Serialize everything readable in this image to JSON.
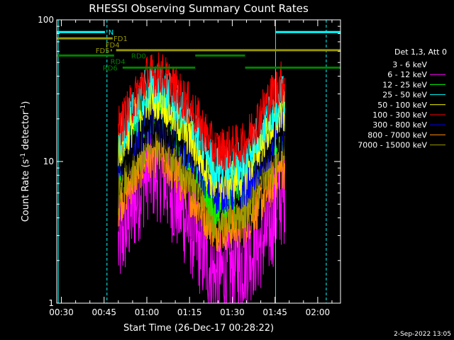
{
  "chart_data": {
    "type": "line",
    "title": "RHESSI Observing Summary Count Rates",
    "xlabel": "Start Time (26-Dec-17 00:28:22)",
    "ylabel_main": "Count Rate (s",
    "ylabel_sup": "-1",
    "ylabel_tail": " detector",
    "ylabel_end": ")",
    "y_scale": "log",
    "xlim": [
      28.37,
      128.0
    ],
    "ylim": [
      1,
      100
    ],
    "grid": false,
    "legend_position": "right",
    "x_ticks": [
      {
        "value": 30,
        "label": "00:30"
      },
      {
        "value": 45,
        "label": "00:45"
      },
      {
        "value": 60,
        "label": "01:00"
      },
      {
        "value": 75,
        "label": "01:15"
      },
      {
        "value": 90,
        "label": "01:30"
      },
      {
        "value": 105,
        "label": "01:45"
      },
      {
        "value": 120,
        "label": "02:00"
      }
    ],
    "y_ticks": [
      {
        "value": 1,
        "label": "1"
      },
      {
        "value": 10,
        "label": "10"
      },
      {
        "value": 100,
        "label": "100"
      }
    ],
    "legend_title": "Det 1,3, Att 0",
    "data_start": 50.0,
    "data_end": 108.5,
    "series": [
      {
        "name": "3 - 6 keV",
        "color": "#000000",
        "values": [
          {
            "x": 50,
            "y": 8
          },
          {
            "x": 60,
            "y": 18
          },
          {
            "x": 65,
            "y": 16
          },
          {
            "x": 75,
            "y": 13
          },
          {
            "x": 84,
            "y": 10.5
          },
          {
            "x": 94,
            "y": 11
          },
          {
            "x": 102,
            "y": 13
          },
          {
            "x": 107,
            "y": 15
          }
        ]
      },
      {
        "name": "6 - 12 keV",
        "color": "#ff00ff",
        "values": [
          {
            "x": 50,
            "y": 2.5
          },
          {
            "x": 60,
            "y": 8.5
          },
          {
            "x": 65,
            "y": 8.2
          },
          {
            "x": 75,
            "y": 3.5
          },
          {
            "x": 84,
            "y": 1.5
          },
          {
            "x": 94,
            "y": 2
          },
          {
            "x": 102,
            "y": 3
          },
          {
            "x": 107,
            "y": 5.5
          }
        ]
      },
      {
        "name": "12 - 25 keV",
        "color": "#00ff00",
        "values": [
          {
            "x": 50,
            "y": 10
          },
          {
            "x": 60,
            "y": 22
          },
          {
            "x": 65,
            "y": 23
          },
          {
            "x": 75,
            "y": 12
          },
          {
            "x": 84,
            "y": 5
          },
          {
            "x": 94,
            "y": 7
          },
          {
            "x": 102,
            "y": 14
          },
          {
            "x": 107,
            "y": 17
          }
        ]
      },
      {
        "name": "25 - 50 keV",
        "color": "#00ffff",
        "values": [
          {
            "x": 50,
            "y": 14
          },
          {
            "x": 60,
            "y": 33
          },
          {
            "x": 65,
            "y": 35
          },
          {
            "x": 75,
            "y": 20
          },
          {
            "x": 84,
            "y": 9
          },
          {
            "x": 94,
            "y": 10
          },
          {
            "x": 102,
            "y": 20
          },
          {
            "x": 107,
            "y": 28
          }
        ]
      },
      {
        "name": "50 - 100 keV",
        "color": "#ffff00",
        "values": [
          {
            "x": 50,
            "y": 12
          },
          {
            "x": 60,
            "y": 28
          },
          {
            "x": 65,
            "y": 28
          },
          {
            "x": 75,
            "y": 15
          },
          {
            "x": 84,
            "y": 7
          },
          {
            "x": 94,
            "y": 8
          },
          {
            "x": 102,
            "y": 16
          },
          {
            "x": 107,
            "y": 22
          }
        ]
      },
      {
        "name": "100 - 300 keV",
        "color": "#ff0000",
        "values": [
          {
            "x": 50,
            "y": 17
          },
          {
            "x": 60,
            "y": 40
          },
          {
            "x": 65,
            "y": 42
          },
          {
            "x": 75,
            "y": 25
          },
          {
            "x": 84,
            "y": 12
          },
          {
            "x": 94,
            "y": 13
          },
          {
            "x": 102,
            "y": 26
          },
          {
            "x": 107,
            "y": 36
          }
        ]
      },
      {
        "name": "300 - 800 keV",
        "color": "#0000ff",
        "values": [
          {
            "x": 50,
            "y": 10
          },
          {
            "x": 60,
            "y": 18
          },
          {
            "x": 65,
            "y": 19
          },
          {
            "x": 75,
            "y": 12
          },
          {
            "x": 84,
            "y": 6
          },
          {
            "x": 94,
            "y": 6.5
          },
          {
            "x": 102,
            "y": 11
          },
          {
            "x": 107,
            "y": 17
          }
        ]
      },
      {
        "name": "800 - 7000 keV",
        "color": "#ff8c00",
        "values": [
          {
            "x": 50,
            "y": 5
          },
          {
            "x": 60,
            "y": 11
          },
          {
            "x": 65,
            "y": 11
          },
          {
            "x": 75,
            "y": 6
          },
          {
            "x": 84,
            "y": 3.3
          },
          {
            "x": 94,
            "y": 3.5
          },
          {
            "x": 102,
            "y": 6
          },
          {
            "x": 107,
            "y": 9
          }
        ]
      },
      {
        "name": "7000 - 15000 keV",
        "color": "#999900",
        "values": [
          {
            "x": 50,
            "y": 6
          },
          {
            "x": 60,
            "y": 14
          },
          {
            "x": 65,
            "y": 14
          },
          {
            "x": 75,
            "y": 8
          },
          {
            "x": 84,
            "y": 4
          },
          {
            "x": 94,
            "y": 4.5
          },
          {
            "x": 102,
            "y": 8
          },
          {
            "x": 107,
            "y": 12
          }
        ]
      }
    ],
    "flags": [
      {
        "label": "N",
        "color": "#00ffff",
        "y": 82,
        "label_x": 46.5,
        "segments": [
          [
            28.4,
            45.3
          ],
          [
            105.2,
            128.0
          ]
        ]
      },
      {
        "label": "FD1",
        "color": "#999900",
        "y": 74,
        "label_x": 48.3,
        "segments": [
          [
            28.4,
            48.0
          ]
        ]
      },
      {
        "label": "FD4",
        "color": "#999900",
        "y": 67,
        "label_x": 45.5,
        "segments": []
      },
      {
        "label": "FD5",
        "color": "#999900",
        "y": 61,
        "label_x": 42.0,
        "segments": [
          [
            47.3,
            47.7
          ],
          [
            49.2,
            128.0
          ]
        ]
      },
      {
        "label": "RD0",
        "color": "#008000",
        "y": 56,
        "label_x": 54.5,
        "segments": [
          [
            28.4,
            48.5
          ],
          [
            77.0,
            94.5
          ]
        ]
      },
      {
        "label": "RD4",
        "color": "#008000",
        "y": 51,
        "label_x": 47.2,
        "segments": []
      },
      {
        "label": "RD6",
        "color": "#008000",
        "y": 46,
        "label_x": 44.5,
        "segments": [
          [
            51.5,
            77.0
          ],
          [
            94.5,
            128.0
          ]
        ]
      }
    ],
    "vlines": [
      {
        "x": 28.9,
        "color": "#00ffff",
        "style": "solid"
      },
      {
        "x": 46.0,
        "color": "#00ffff",
        "style": "dashed"
      },
      {
        "x": 105.2,
        "color": "#00ffff",
        "style": "solid"
      },
      {
        "x": 123.0,
        "color": "#00ffff",
        "style": "dashed"
      }
    ],
    "footer": "2-Sep-2022 13:05"
  }
}
